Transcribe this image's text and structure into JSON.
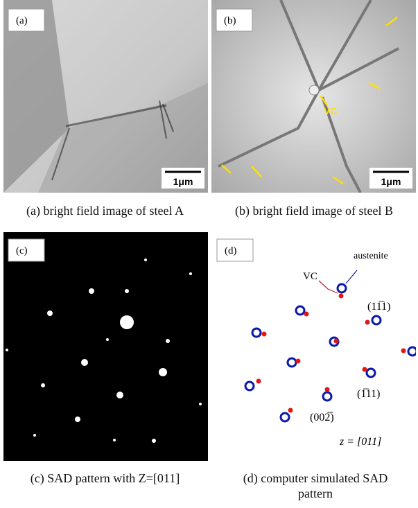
{
  "panels": [
    {
      "label": "(a)",
      "scale_bar": "1μm",
      "caption": "(a) bright field image of steel A"
    },
    {
      "label": "(b)",
      "scale_bar": "1μm",
      "annotation": "VC",
      "caption": "(b) bright field image of steel B"
    },
    {
      "label": "(c)",
      "caption": "(c) SAD pattern with Z=[011]"
    },
    {
      "label": "(d)",
      "austenite": "austenite",
      "vc": "VC",
      "planes": [
        "(11̅1)",
        "(1̅11)",
        "(002̅)"
      ],
      "zone": "z = [011]",
      "caption": "(d) computer simulated SAD pattern"
    }
  ]
}
